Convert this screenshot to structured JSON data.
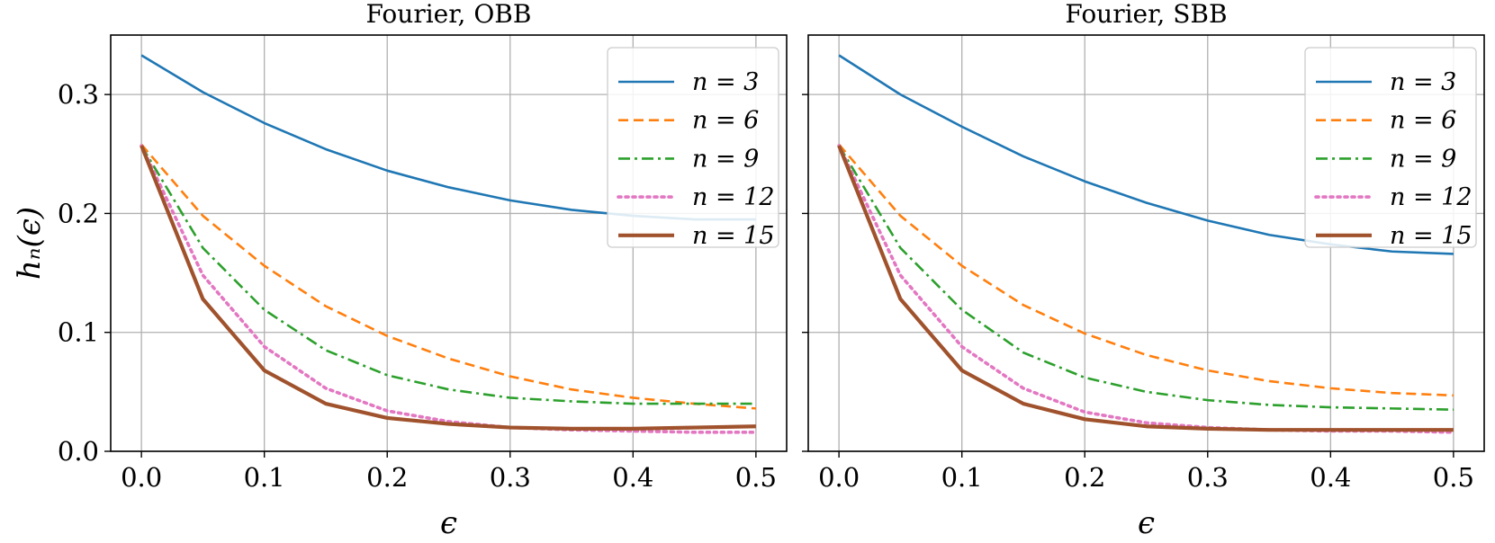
{
  "chart_data": [
    {
      "type": "line",
      "title": "Fourier,  OBB",
      "xlabel": "ϵ",
      "ylabel": "h_n(ϵ)",
      "ylabel_display": "hₙ(ϵ)",
      "xlim": [
        -0.025,
        0.525
      ],
      "ylim": [
        0.0,
        0.35
      ],
      "xticks": [
        0.0,
        0.1,
        0.2,
        0.3,
        0.4,
        0.5
      ],
      "xtick_labels": [
        "0.0",
        "0.1",
        "0.2",
        "0.3",
        "0.4",
        "0.5"
      ],
      "yticks": [
        0.0,
        0.1,
        0.2,
        0.3
      ],
      "ytick_labels": [
        "0.0",
        "0.1",
        "0.2",
        "0.3"
      ],
      "grid": true,
      "legend": "top-right",
      "x": [
        0.0,
        0.05,
        0.1,
        0.15,
        0.2,
        0.25,
        0.3,
        0.35,
        0.4,
        0.45,
        0.5
      ],
      "series": [
        {
          "name": "n = 3",
          "color": "#1f77b4",
          "dash": "solid",
          "values": [
            0.333,
            0.302,
            0.276,
            0.254,
            0.236,
            0.222,
            0.211,
            0.203,
            0.198,
            0.195,
            0.195
          ]
        },
        {
          "name": "n = 6",
          "color": "#ff7f0e",
          "dash": "dashed",
          "values": [
            0.258,
            0.198,
            0.156,
            0.122,
            0.097,
            0.078,
            0.063,
            0.052,
            0.045,
            0.04,
            0.036
          ]
        },
        {
          "name": "n = 9",
          "color": "#2ca02c",
          "dash": "dashdot",
          "values": [
            0.257,
            0.171,
            0.119,
            0.085,
            0.064,
            0.052,
            0.045,
            0.042,
            0.04,
            0.04,
            0.04
          ]
        },
        {
          "name": "n = 12",
          "color": "#e377c2",
          "dash": "dotted",
          "values": [
            0.257,
            0.148,
            0.088,
            0.053,
            0.034,
            0.025,
            0.02,
            0.018,
            0.017,
            0.016,
            0.016
          ]
        },
        {
          "name": "n = 15",
          "color": "#a0522d",
          "dash": "solid-thick",
          "values": [
            0.257,
            0.128,
            0.068,
            0.04,
            0.028,
            0.023,
            0.02,
            0.019,
            0.019,
            0.02,
            0.021
          ]
        }
      ]
    },
    {
      "type": "line",
      "title": "Fourier,  SBB",
      "xlabel": "ϵ",
      "ylabel": "",
      "ylabel_display": "",
      "xlim": [
        -0.025,
        0.525
      ],
      "ylim": [
        0.0,
        0.35
      ],
      "xticks": [
        0.0,
        0.1,
        0.2,
        0.3,
        0.4,
        0.5
      ],
      "xtick_labels": [
        "0.0",
        "0.1",
        "0.2",
        "0.3",
        "0.4",
        "0.5"
      ],
      "yticks": [
        0.0,
        0.1,
        0.2,
        0.3
      ],
      "ytick_labels": [],
      "grid": true,
      "legend": "top-right",
      "x": [
        0.0,
        0.05,
        0.1,
        0.15,
        0.2,
        0.25,
        0.3,
        0.35,
        0.4,
        0.45,
        0.5
      ],
      "series": [
        {
          "name": "n = 3",
          "color": "#1f77b4",
          "dash": "solid",
          "values": [
            0.333,
            0.3,
            0.273,
            0.248,
            0.227,
            0.209,
            0.194,
            0.182,
            0.174,
            0.168,
            0.166
          ]
        },
        {
          "name": "n = 6",
          "color": "#ff7f0e",
          "dash": "dashed",
          "values": [
            0.258,
            0.198,
            0.156,
            0.123,
            0.099,
            0.081,
            0.068,
            0.059,
            0.053,
            0.049,
            0.047
          ]
        },
        {
          "name": "n = 9",
          "color": "#2ca02c",
          "dash": "dashdot",
          "values": [
            0.257,
            0.171,
            0.119,
            0.083,
            0.062,
            0.05,
            0.043,
            0.039,
            0.037,
            0.036,
            0.035
          ]
        },
        {
          "name": "n = 12",
          "color": "#e377c2",
          "dash": "dotted",
          "values": [
            0.257,
            0.148,
            0.088,
            0.053,
            0.033,
            0.024,
            0.02,
            0.018,
            0.017,
            0.017,
            0.016
          ]
        },
        {
          "name": "n = 15",
          "color": "#a0522d",
          "dash": "solid-thick",
          "values": [
            0.257,
            0.128,
            0.068,
            0.04,
            0.027,
            0.021,
            0.019,
            0.018,
            0.018,
            0.018,
            0.018
          ]
        }
      ]
    }
  ]
}
